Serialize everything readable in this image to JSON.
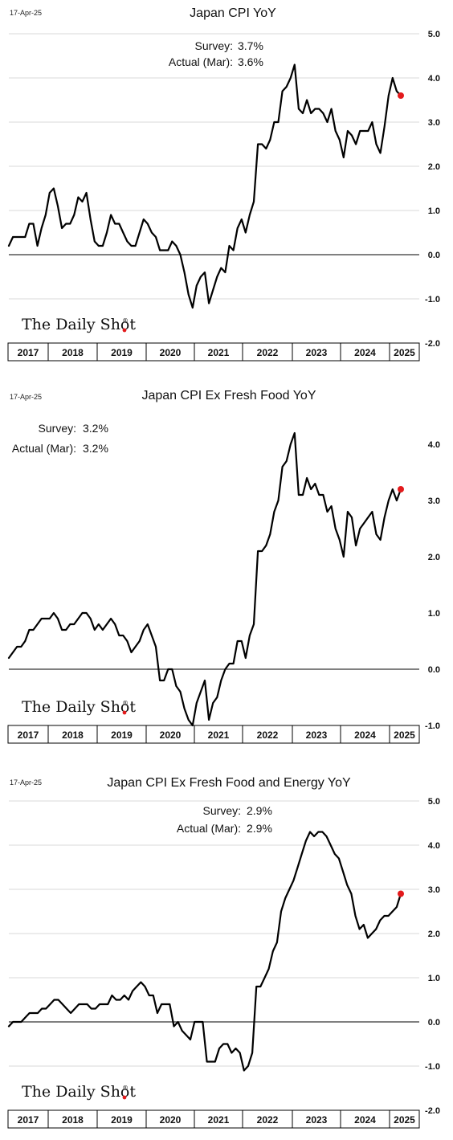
{
  "date_stamp": "17-Apr-25",
  "brand": "The Daily Shot",
  "brand_mark": "®",
  "colors": {
    "line": "#000000",
    "last_point": "#e31a1c",
    "grid": "#d9d9d9"
  },
  "chart_data": [
    {
      "type": "line",
      "title": "Japan CPI YoY",
      "survey_label": "Survey:",
      "survey_value": "3.7%",
      "actual_label": "Actual (Mar):",
      "actual_value": "3.6%",
      "annotation_position": "top-center",
      "ylim": [
        -2.0,
        5.0
      ],
      "yticks": [
        "5.0",
        "4.0",
        "3.0",
        "2.0",
        "1.0",
        "0.0",
        "-1.0",
        "-2.0"
      ],
      "years": [
        "2017",
        "2018",
        "2019",
        "2020",
        "2021",
        "2022",
        "2023",
        "2024",
        "2025"
      ],
      "grid": true,
      "values": [
        0.2,
        0.4,
        0.4,
        0.4,
        0.4,
        0.7,
        0.7,
        0.2,
        0.6,
        0.9,
        1.4,
        1.5,
        1.1,
        0.6,
        0.7,
        0.7,
        0.9,
        1.3,
        1.2,
        1.4,
        0.8,
        0.3,
        0.2,
        0.2,
        0.5,
        0.9,
        0.7,
        0.7,
        0.5,
        0.3,
        0.2,
        0.2,
        0.5,
        0.8,
        0.7,
        0.5,
        0.4,
        0.1,
        0.1,
        0.1,
        0.3,
        0.2,
        0.0,
        -0.4,
        -0.9,
        -1.2,
        -0.7,
        -0.5,
        -0.4,
        -1.1,
        -0.8,
        -0.5,
        -0.3,
        -0.4,
        0.2,
        0.1,
        0.6,
        0.8,
        0.5,
        0.9,
        1.2,
        2.5,
        2.5,
        2.4,
        2.6,
        3.0,
        3.0,
        3.7,
        3.8,
        4.0,
        4.3,
        3.3,
        3.2,
        3.5,
        3.2,
        3.3,
        3.3,
        3.2,
        3.0,
        3.3,
        2.8,
        2.6,
        2.2,
        2.8,
        2.7,
        2.5,
        2.8,
        2.8,
        2.8,
        3.0,
        2.5,
        2.3,
        2.9,
        3.6,
        4.0,
        3.7,
        3.6
      ]
    },
    {
      "type": "line",
      "title": "Japan CPI Ex Fresh Food YoY",
      "survey_label": "Survey:",
      "survey_value": "3.2%",
      "actual_label": "Actual (Mar):",
      "actual_value": "3.2%",
      "annotation_position": "top-left",
      "ylim": [
        -1.0,
        4.2
      ],
      "yticks": [
        "4.0",
        "3.0",
        "2.0",
        "1.0",
        "0.0",
        "-1.0"
      ],
      "years": [
        "2017",
        "2018",
        "2019",
        "2020",
        "2021",
        "2022",
        "2023",
        "2024",
        "2025"
      ],
      "grid": false,
      "values": [
        0.2,
        0.3,
        0.4,
        0.4,
        0.5,
        0.7,
        0.7,
        0.8,
        0.9,
        0.9,
        0.9,
        1.0,
        0.9,
        0.7,
        0.7,
        0.8,
        0.8,
        0.9,
        1.0,
        1.0,
        0.9,
        0.7,
        0.8,
        0.7,
        0.8,
        0.9,
        0.8,
        0.6,
        0.6,
        0.5,
        0.3,
        0.4,
        0.5,
        0.7,
        0.8,
        0.6,
        0.4,
        -0.2,
        -0.2,
        0.0,
        0.0,
        -0.3,
        -0.4,
        -0.7,
        -0.9,
        -1.0,
        -0.6,
        -0.4,
        -0.2,
        -0.9,
        -0.6,
        -0.5,
        -0.2,
        0.0,
        0.1,
        0.1,
        0.5,
        0.5,
        0.2,
        0.6,
        0.8,
        2.1,
        2.1,
        2.2,
        2.4,
        2.8,
        3.0,
        3.6,
        3.7,
        4.0,
        4.2,
        3.1,
        3.1,
        3.4,
        3.2,
        3.3,
        3.1,
        3.1,
        2.8,
        2.9,
        2.5,
        2.3,
        2.0,
        2.8,
        2.7,
        2.2,
        2.5,
        2.6,
        2.7,
        2.8,
        2.4,
        2.3,
        2.7,
        3.0,
        3.2,
        3.0,
        3.2
      ]
    },
    {
      "type": "line",
      "title": "Japan CPI Ex Fresh Food and Energy YoY",
      "survey_label": "Survey:",
      "survey_value": "2.9%",
      "actual_label": "Actual (Mar):",
      "actual_value": "2.9%",
      "annotation_position": "top-center",
      "ylim": [
        -2.0,
        5.0
      ],
      "yticks": [
        "5.0",
        "4.0",
        "3.0",
        "2.0",
        "1.0",
        "0.0",
        "-1.0",
        "-2.0"
      ],
      "years": [
        "2017",
        "2018",
        "2019",
        "2020",
        "2021",
        "2022",
        "2023",
        "2024",
        "2025"
      ],
      "grid": true,
      "values": [
        -0.1,
        0.0,
        0.0,
        0.0,
        0.1,
        0.2,
        0.2,
        0.2,
        0.3,
        0.3,
        0.4,
        0.5,
        0.5,
        0.4,
        0.3,
        0.2,
        0.3,
        0.4,
        0.4,
        0.4,
        0.3,
        0.3,
        0.4,
        0.4,
        0.4,
        0.6,
        0.5,
        0.5,
        0.6,
        0.5,
        0.7,
        0.8,
        0.9,
        0.8,
        0.6,
        0.6,
        0.2,
        0.4,
        0.4,
        0.4,
        -0.1,
        0.0,
        -0.2,
        -0.3,
        -0.4,
        0.0,
        0.0,
        0.0,
        -0.9,
        -0.9,
        -0.9,
        -0.6,
        -0.5,
        -0.5,
        -0.7,
        -0.6,
        -0.7,
        -1.1,
        -1.0,
        -0.7,
        0.8,
        0.8,
        1.0,
        1.2,
        1.6,
        1.8,
        2.5,
        2.8,
        3.0,
        3.2,
        3.5,
        3.8,
        4.1,
        4.3,
        4.2,
        4.3,
        4.3,
        4.2,
        4.0,
        3.8,
        3.7,
        3.4,
        3.1,
        2.9,
        2.4,
        2.1,
        2.2,
        1.9,
        2.0,
        2.1,
        2.3,
        2.4,
        2.4,
        2.5,
        2.6,
        2.9
      ]
    }
  ]
}
